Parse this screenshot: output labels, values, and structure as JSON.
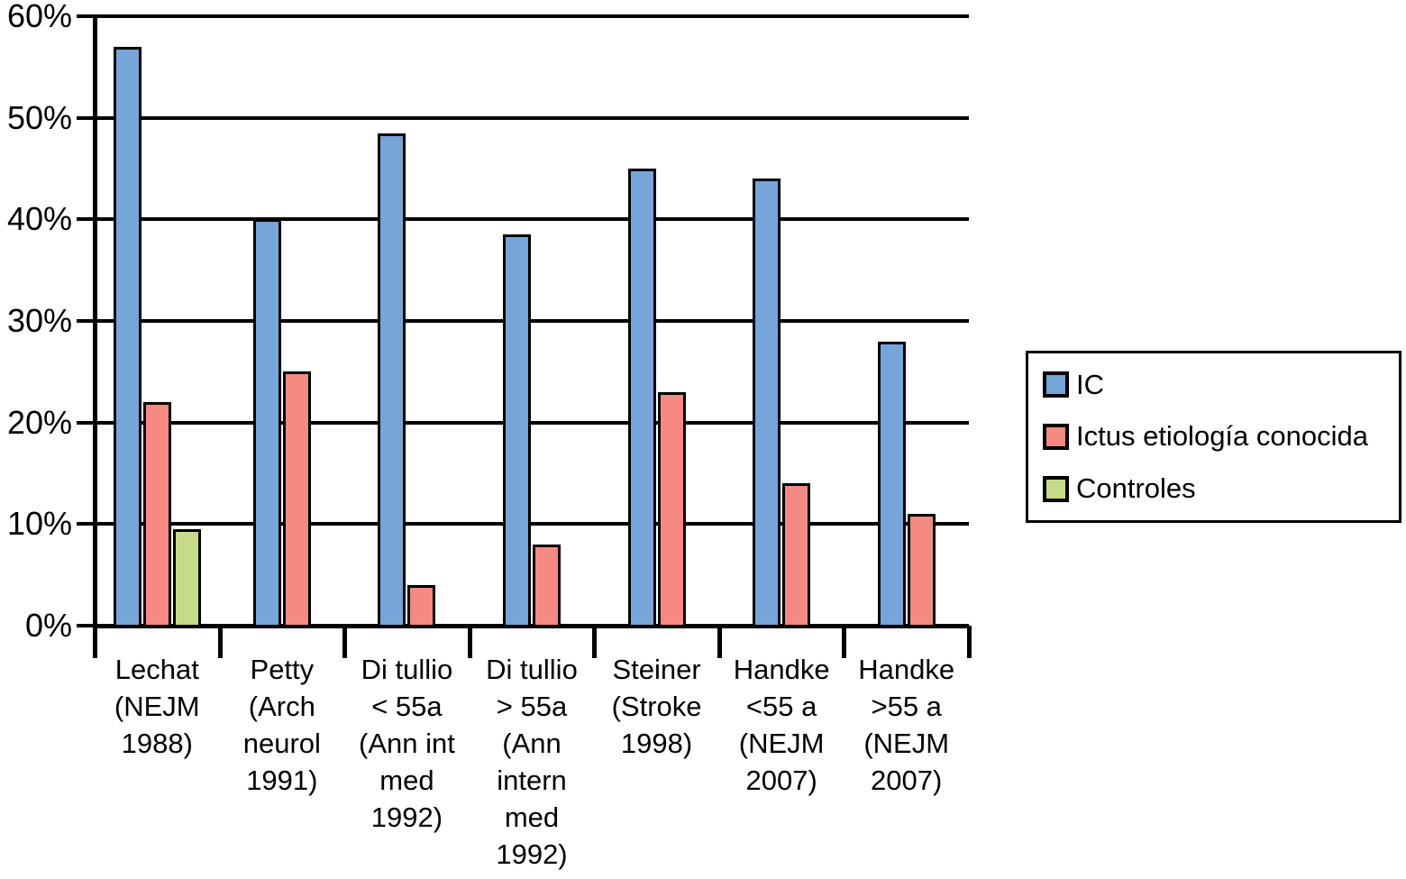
{
  "chart_data": {
    "type": "bar",
    "title": "",
    "xlabel": "",
    "ylabel": "",
    "ylim": [
      0,
      60
    ],
    "ytick_step": 10,
    "ytick_labels": [
      "0%",
      "10%",
      "20%",
      "30%",
      "40%",
      "50%",
      "60%"
    ],
    "grid": true,
    "legend_position": "right",
    "categories": [
      "Lechat (NEJM 1988)",
      "Petty (Arch neurol 1991)",
      "Di tullio < 55a (Ann int med 1992)",
      "Di tullio > 55a (Ann intern med 1992)",
      "Steiner (Stroke 1998)",
      "Handke <55 a (NEJM 2007)",
      "Handke >55 a (NEJM 2007)"
    ],
    "category_lines": [
      [
        "Lechat",
        "(NEJM",
        "1988)"
      ],
      [
        "Petty",
        "(Arch",
        "neurol",
        "1991)"
      ],
      [
        "Di tullio",
        "< 55a",
        "(Ann int",
        "med",
        "1992)"
      ],
      [
        "Di tullio",
        "> 55a",
        "(Ann",
        "intern",
        "med",
        "1992)"
      ],
      [
        "Steiner",
        "(Stroke",
        "1998)"
      ],
      [
        "Handke",
        "<55 a",
        "(NEJM",
        "2007)"
      ],
      [
        "Handke",
        ">55 a",
        "(NEJM",
        "2007)"
      ]
    ],
    "series": [
      {
        "key": "ic",
        "name": "IC",
        "color": "#76A5D8",
        "values": [
          57,
          40,
          48.5,
          38.5,
          45,
          44,
          28
        ]
      },
      {
        "key": "ictus-etiologia-conocida",
        "name": "Ictus etiología conocida",
        "color": "#F58A82",
        "values": [
          22,
          25,
          4,
          8,
          23,
          14,
          11
        ]
      },
      {
        "key": "controles",
        "name": "Controles",
        "color": "#C5DB8A",
        "values": [
          9.5,
          null,
          null,
          null,
          null,
          null,
          null
        ]
      }
    ],
    "colors": {
      "bar_border": "#000000",
      "gridline": "#000000",
      "text": "#000000",
      "background": "#ffffff"
    }
  }
}
